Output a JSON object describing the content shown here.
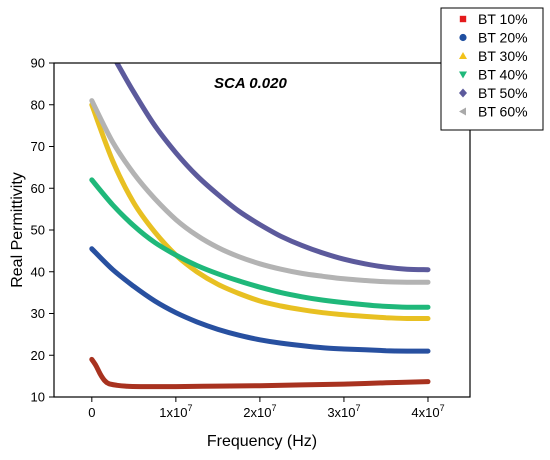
{
  "chart_data": {
    "type": "scatter",
    "title": "",
    "annotation": "SCA 0.020",
    "xlabel": "Frequency (Hz)",
    "ylabel": "Real Permittivity",
    "xlim": [
      -4500000,
      45000000
    ],
    "ylim": [
      10,
      90
    ],
    "x_ticks": [
      {
        "value": 0,
        "base": "0",
        "exp": ""
      },
      {
        "value": 10000000,
        "base": "1x10",
        "exp": "7"
      },
      {
        "value": 20000000,
        "base": "2x10",
        "exp": "7"
      },
      {
        "value": 30000000,
        "base": "3x10",
        "exp": "7"
      },
      {
        "value": 40000000,
        "base": "4x10",
        "exp": "7"
      }
    ],
    "y_ticks": [
      {
        "value": 10,
        "label": "10"
      },
      {
        "value": 20,
        "label": "20"
      },
      {
        "value": 30,
        "label": "30"
      },
      {
        "value": 40,
        "label": "40"
      },
      {
        "value": 50,
        "label": "50"
      },
      {
        "value": 60,
        "label": "60"
      },
      {
        "value": 70,
        "label": "70"
      },
      {
        "value": 80,
        "label": "80"
      },
      {
        "value": 90,
        "label": "90"
      }
    ],
    "grid": false,
    "legend_position": "top-right",
    "series": [
      {
        "name": "BT 10%",
        "marker": "square",
        "legend_color": "#e41a1c",
        "line_color": "#a8321f",
        "x": [
          0,
          500000,
          1000000,
          1500000,
          2000000,
          3000000,
          4000000,
          6000000,
          8000000,
          10000000,
          15000000,
          20000000,
          25000000,
          30000000,
          35000000,
          40000000
        ],
        "y": [
          19.0,
          17.5,
          15.5,
          14.0,
          13.2,
          12.8,
          12.6,
          12.5,
          12.5,
          12.5,
          12.6,
          12.7,
          12.9,
          13.1,
          13.4,
          13.7
        ]
      },
      {
        "name": "BT 20%",
        "marker": "circle",
        "legend_color": "#1f4fa0",
        "line_color": "#2850a0",
        "x": [
          0,
          2500000,
          5000000,
          7500000,
          10000000,
          12500000,
          15000000,
          17500000,
          20000000,
          22500000,
          25000000,
          27500000,
          30000000,
          32500000,
          35000000,
          37500000,
          40000000
        ],
        "y": [
          45.5,
          40.5,
          36.5,
          33.0,
          30.2,
          28.0,
          26.2,
          24.8,
          23.7,
          22.9,
          22.3,
          21.8,
          21.5,
          21.3,
          21.1,
          21.0,
          21.0
        ]
      },
      {
        "name": "BT 30%",
        "marker": "triangle-up",
        "legend_color": "#f2c21a",
        "line_color": "#e8c022",
        "x": [
          0,
          2500000,
          5000000,
          7500000,
          10000000,
          12500000,
          15000000,
          17500000,
          20000000,
          22500000,
          25000000,
          27500000,
          30000000,
          32500000,
          35000000,
          37500000,
          40000000
        ],
        "y": [
          80.0,
          66.5,
          56.5,
          49.5,
          44.0,
          40.0,
          37.0,
          34.8,
          33.0,
          31.8,
          30.9,
          30.2,
          29.7,
          29.3,
          29.0,
          28.8,
          28.8
        ]
      },
      {
        "name": "BT 40%",
        "marker": "triangle-down",
        "legend_color": "#1fb87a",
        "line_color": "#1fb87a",
        "x": [
          0,
          2500000,
          5000000,
          7500000,
          10000000,
          12500000,
          15000000,
          17500000,
          20000000,
          22500000,
          25000000,
          27500000,
          30000000,
          32500000,
          35000000,
          37500000,
          40000000
        ],
        "y": [
          62.0,
          56.0,
          51.0,
          47.0,
          44.0,
          41.5,
          39.5,
          37.8,
          36.3,
          35.0,
          34.0,
          33.2,
          32.6,
          32.1,
          31.7,
          31.5,
          31.5
        ]
      },
      {
        "name": "BT 50%",
        "marker": "diamond",
        "legend_color": "#5c5a9c",
        "line_color": "#5c5a9c",
        "x": [
          3000000,
          5000000,
          7500000,
          10000000,
          12500000,
          15000000,
          17500000,
          20000000,
          22500000,
          25000000,
          27500000,
          30000000,
          32500000,
          35000000,
          37500000,
          40000000
        ],
        "y": [
          90.0,
          83.0,
          75.0,
          68.5,
          63.0,
          58.5,
          54.5,
          51.3,
          48.5,
          46.3,
          44.5,
          43.0,
          41.9,
          41.1,
          40.6,
          40.5
        ]
      },
      {
        "name": "BT 60%",
        "marker": "triangle-left",
        "legend_color": "#a9a9a9",
        "line_color": "#b3b3b3",
        "x": [
          0,
          2500000,
          5000000,
          7500000,
          10000000,
          12500000,
          15000000,
          17500000,
          20000000,
          22500000,
          25000000,
          27500000,
          30000000,
          32500000,
          35000000,
          37500000,
          40000000
        ],
        "y": [
          81.0,
          71.0,
          63.5,
          57.5,
          52.5,
          48.7,
          45.8,
          43.6,
          41.9,
          40.6,
          39.6,
          38.9,
          38.3,
          37.9,
          37.6,
          37.5,
          37.5
        ]
      }
    ]
  }
}
